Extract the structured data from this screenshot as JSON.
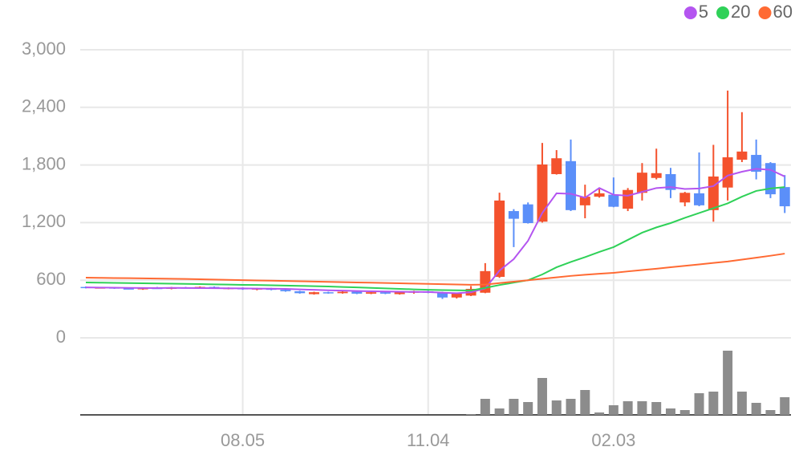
{
  "chart_data": {
    "type": "candlestick",
    "categories": [
      null,
      null,
      null,
      null,
      null,
      null,
      null,
      null,
      null,
      null,
      null,
      "08.05",
      null,
      null,
      null,
      null,
      null,
      null,
      null,
      null,
      null,
      null,
      null,
      null,
      "11.04",
      null,
      null,
      null,
      null,
      null,
      null,
      null,
      null,
      null,
      null,
      null,
      null,
      "02.03",
      null,
      null,
      null,
      null,
      null,
      null,
      null,
      null,
      null,
      null,
      null,
      null
    ],
    "open": [
      530,
      520,
      525,
      515,
      505,
      520,
      510,
      525,
      515,
      530,
      515,
      520,
      505,
      515,
      500,
      485,
      455,
      475,
      465,
      480,
      460,
      475,
      455,
      470,
      485,
      470,
      420,
      440,
      470,
      635,
      1320,
      1390,
      1210,
      1705,
      1840,
      1380,
      1470,
      1490,
      1345,
      1510,
      1665,
      1705,
      1410,
      1505,
      1330,
      1565,
      1855,
      1905,
      1820,
      1570
    ],
    "high": [
      535,
      530,
      530,
      520,
      525,
      530,
      530,
      530,
      535,
      535,
      525,
      525,
      520,
      520,
      505,
      490,
      480,
      480,
      485,
      485,
      480,
      480,
      480,
      490,
      490,
      480,
      470,
      540,
      778,
      1512,
      1340,
      1410,
      2030,
      1955,
      2065,
      1595,
      1550,
      1670,
      1560,
      1820,
      1970,
      1770,
      1520,
      1930,
      2010,
      2575,
      2350,
      2065,
      1830,
      1695
    ],
    "low": [
      515,
      515,
      510,
      505,
      500,
      510,
      505,
      515,
      510,
      510,
      505,
      500,
      495,
      495,
      480,
      460,
      450,
      460,
      460,
      455,
      455,
      455,
      450,
      460,
      465,
      405,
      410,
      435,
      465,
      625,
      945,
      1190,
      1200,
      1700,
      1320,
      1245,
      1460,
      1360,
      1320,
      1430,
      1650,
      1455,
      1370,
      1370,
      1210,
      1430,
      1830,
      1650,
      1455,
      1300
    ],
    "close": [
      520,
      525,
      515,
      510,
      520,
      515,
      525,
      520,
      530,
      515,
      520,
      505,
      515,
      500,
      485,
      465,
      475,
      465,
      480,
      460,
      475,
      460,
      475,
      485,
      470,
      420,
      460,
      510,
      695,
      1430,
      1240,
      1195,
      1805,
      1870,
      1330,
      1470,
      1505,
      1365,
      1540,
      1720,
      1715,
      1540,
      1510,
      1380,
      1680,
      1880,
      1940,
      1730,
      1495,
      1370
    ],
    "up_color": "#f4522d",
    "down_color": "#5b8ff9",
    "volume": [
      0,
      0,
      0,
      0,
      0,
      0,
      0,
      0,
      0,
      0,
      0,
      0,
      0,
      0,
      0,
      0,
      0,
      0,
      0,
      0,
      0,
      0,
      0,
      0,
      0,
      0,
      0,
      1,
      20,
      8,
      20,
      16,
      46,
      18,
      20,
      31,
      3,
      12,
      17,
      17,
      16,
      8,
      6,
      27,
      29,
      80,
      29,
      15,
      6,
      22
    ],
    "volume_color": "#8c8c8c",
    "series": [
      {
        "name": "5",
        "color": "#b455f0",
        "values": [
          525,
          523,
          522,
          520,
          519,
          518,
          520,
          519,
          518,
          517,
          516,
          515,
          513,
          512,
          510,
          505,
          500,
          495,
          492,
          488,
          485,
          483,
          480,
          478,
          477,
          470,
          465,
          475,
          515,
          700,
          820,
          1010,
          1300,
          1505,
          1500,
          1460,
          1560,
          1490,
          1480,
          1520,
          1560,
          1570,
          1550,
          1555,
          1580,
          1690,
          1730,
          1760,
          1750,
          1680
        ]
      },
      {
        "name": "20",
        "color": "#2fd158",
        "values": [
          577,
          575,
          572,
          570,
          568,
          566,
          564,
          562,
          560,
          557,
          555,
          552,
          550,
          547,
          544,
          541,
          538,
          535,
          530,
          525,
          520,
          515,
          510,
          505,
          500,
          497,
          495,
          493,
          520,
          550,
          575,
          600,
          660,
          735,
          790,
          840,
          895,
          945,
          1020,
          1095,
          1150,
          1195,
          1250,
          1300,
          1350,
          1400,
          1470,
          1530,
          1555,
          1570
        ]
      },
      {
        "name": "60",
        "color": "#ff6a33",
        "values": [
          627,
          625,
          623,
          621,
          619,
          617,
          615,
          613,
          610,
          607,
          604,
          601,
          598,
          595,
          592,
          589,
          586,
          583,
          580,
          577,
          574,
          571,
          568,
          565,
          562,
          559,
          556,
          553,
          555,
          570,
          585,
          600,
          615,
          630,
          645,
          657,
          667,
          677,
          692,
          706,
          720,
          735,
          750,
          765,
          780,
          795,
          815,
          835,
          855,
          877
        ]
      }
    ],
    "ylim": [
      0,
      3000
    ],
    "yticks": [
      0,
      600,
      {
        "value": 1200,
        "label": "1,200"
      },
      {
        "value": 1800,
        "label": "1,800"
      },
      {
        "value": 2400,
        "label": "2,400"
      },
      {
        "value": 3000,
        "label": "3,000"
      }
    ],
    "grid": true
  }
}
